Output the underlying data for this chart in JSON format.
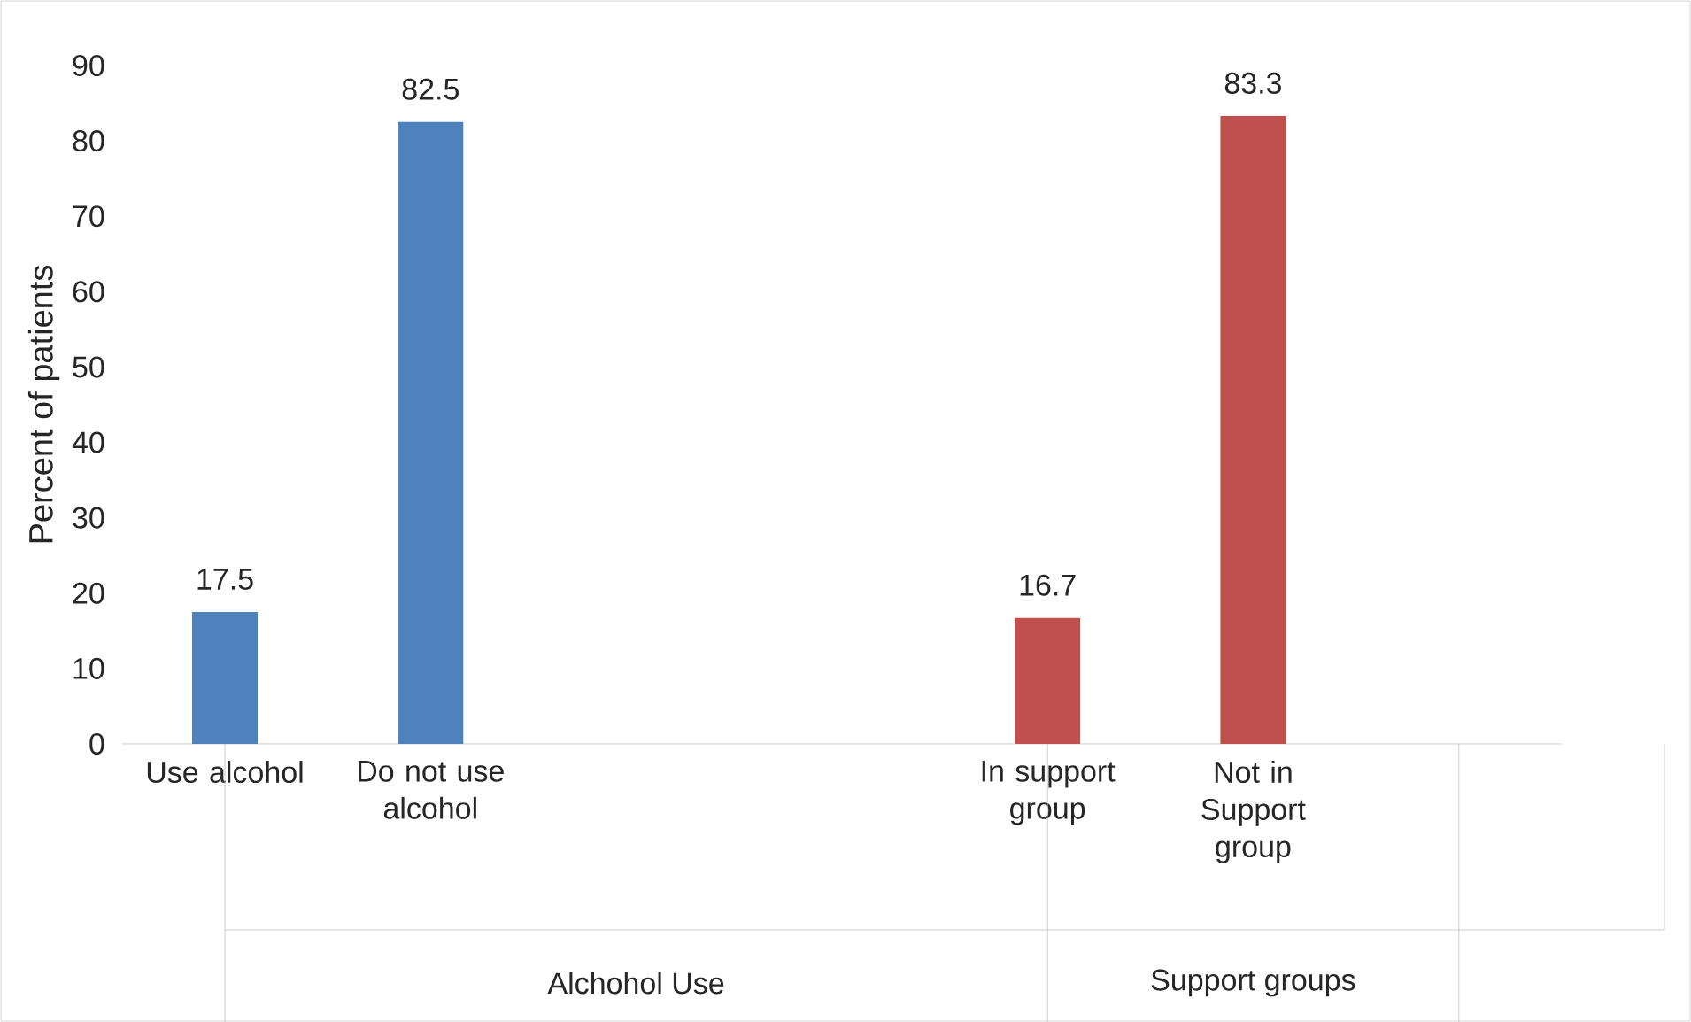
{
  "chart_data": {
    "type": "bar",
    "ylabel": "Percent of patients",
    "categories": [
      "Use alcohol",
      "Do not use alcohol",
      null,
      null,
      "In support group",
      "Not in Support group",
      null
    ],
    "series": [
      {
        "color": "#4f81bd",
        "values": [
          17.5,
          82.5,
          null,
          null,
          null,
          null,
          null
        ]
      },
      {
        "color": "#c0504d",
        "values": [
          null,
          null,
          null,
          null,
          16.7,
          83.3,
          null
        ]
      }
    ],
    "annotations": [
      "Alchohol Use",
      "Support groups"
    ],
    "ylim": [
      0,
      90
    ],
    "yticks": [
      0,
      10,
      20,
      30,
      40,
      50,
      60,
      70,
      80,
      90
    ],
    "data_labels": true
  }
}
